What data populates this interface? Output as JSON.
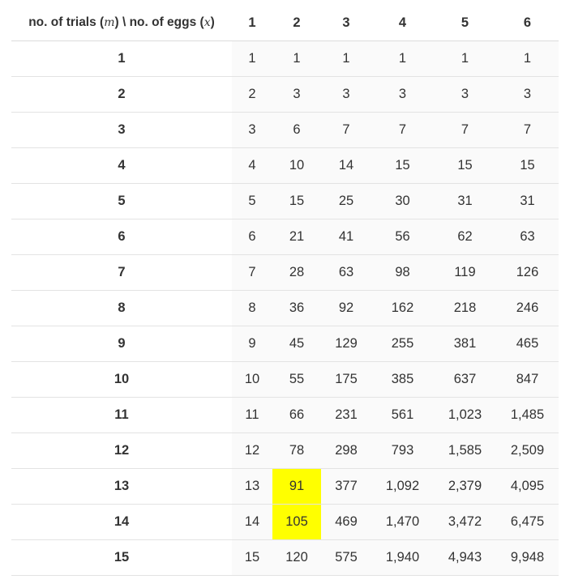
{
  "header": {
    "corner_parts": [
      "no. of trials (",
      "m",
      ") \\ no. of eggs (",
      "x",
      ")"
    ],
    "egg_counts": [
      "1",
      "2",
      "3",
      "4",
      "5",
      "6"
    ]
  },
  "rows": [
    {
      "trials": "1",
      "values": [
        "1",
        "1",
        "1",
        "1",
        "1",
        "1"
      ]
    },
    {
      "trials": "2",
      "values": [
        "2",
        "3",
        "3",
        "3",
        "3",
        "3"
      ]
    },
    {
      "trials": "3",
      "values": [
        "3",
        "6",
        "7",
        "7",
        "7",
        "7"
      ]
    },
    {
      "trials": "4",
      "values": [
        "4",
        "10",
        "14",
        "15",
        "15",
        "15"
      ]
    },
    {
      "trials": "5",
      "values": [
        "5",
        "15",
        "25",
        "30",
        "31",
        "31"
      ]
    },
    {
      "trials": "6",
      "values": [
        "6",
        "21",
        "41",
        "56",
        "62",
        "63"
      ]
    },
    {
      "trials": "7",
      "values": [
        "7",
        "28",
        "63",
        "98",
        "119",
        "126"
      ]
    },
    {
      "trials": "8",
      "values": [
        "8",
        "36",
        "92",
        "162",
        "218",
        "246"
      ]
    },
    {
      "trials": "9",
      "values": [
        "9",
        "45",
        "129",
        "255",
        "381",
        "465"
      ]
    },
    {
      "trials": "10",
      "values": [
        "10",
        "55",
        "175",
        "385",
        "637",
        "847"
      ]
    },
    {
      "trials": "11",
      "values": [
        "11",
        "66",
        "231",
        "561",
        "1,023",
        "1,485"
      ]
    },
    {
      "trials": "12",
      "values": [
        "12",
        "78",
        "298",
        "793",
        "1,585",
        "2,509"
      ]
    },
    {
      "trials": "13",
      "values": [
        "13",
        "91",
        "377",
        "1,092",
        "2,379",
        "4,095"
      ]
    },
    {
      "trials": "14",
      "values": [
        "14",
        "105",
        "469",
        "1,470",
        "3,472",
        "6,475"
      ]
    },
    {
      "trials": "15",
      "values": [
        "15",
        "120",
        "575",
        "1,940",
        "4,943",
        "9,948"
      ]
    }
  ],
  "highlighted_cells": [
    {
      "row": 12,
      "col": 1
    },
    {
      "row": 13,
      "col": 1
    }
  ],
  "colors": {
    "highlight": "#ffff00",
    "text": "#333333",
    "cell_background": "#fafafa",
    "rule": "#e3e3e3"
  }
}
